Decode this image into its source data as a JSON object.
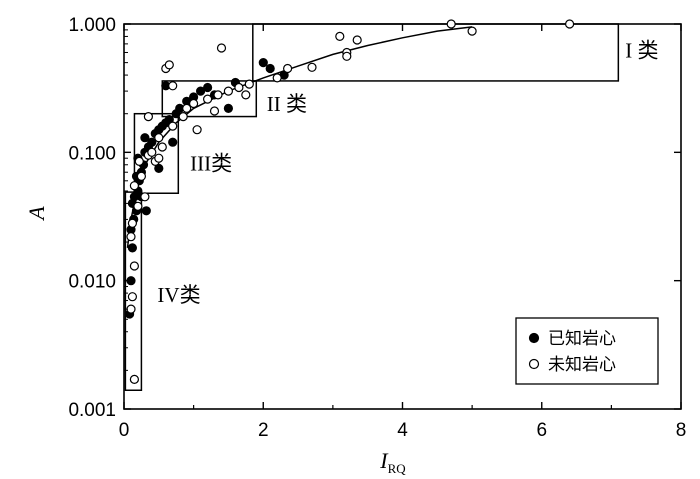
{
  "chart_data": {
    "type": "scatter",
    "title": "",
    "xlabel": "I",
    "xlabel_sub": "RQ",
    "ylabel": "A",
    "xlim": [
      0,
      8
    ],
    "ylim": [
      0.001,
      1.0
    ],
    "yscale": "log",
    "xticks": [
      "0",
      "2",
      "4",
      "6",
      "8"
    ],
    "yticks": [
      "0.001",
      "0.010",
      "0.100",
      "1.000"
    ],
    "grid": false,
    "legend_position": "bottom-right",
    "series": [
      {
        "name": "已知岩心",
        "marker": "filled-circle",
        "color": "#000000",
        "points": [
          [
            0.08,
            0.0055
          ],
          [
            0.1,
            0.01
          ],
          [
            0.12,
            0.018
          ],
          [
            0.1,
            0.025
          ],
          [
            0.14,
            0.03
          ],
          [
            0.12,
            0.04
          ],
          [
            0.18,
            0.035
          ],
          [
            0.15,
            0.045
          ],
          [
            0.2,
            0.05
          ],
          [
            0.22,
            0.06
          ],
          [
            0.18,
            0.065
          ],
          [
            0.25,
            0.07
          ],
          [
            0.28,
            0.08
          ],
          [
            0.2,
            0.09
          ],
          [
            0.3,
            0.1
          ],
          [
            0.35,
            0.11
          ],
          [
            0.4,
            0.12
          ],
          [
            0.3,
            0.13
          ],
          [
            0.45,
            0.14
          ],
          [
            0.5,
            0.15
          ],
          [
            0.55,
            0.16
          ],
          [
            0.6,
            0.17
          ],
          [
            0.65,
            0.18
          ],
          [
            0.75,
            0.2
          ],
          [
            0.8,
            0.22
          ],
          [
            0.9,
            0.25
          ],
          [
            1.0,
            0.27
          ],
          [
            1.1,
            0.3
          ],
          [
            1.2,
            0.32
          ],
          [
            1.3,
            0.28
          ],
          [
            1.5,
            0.22
          ],
          [
            1.6,
            0.35
          ],
          [
            2.0,
            0.5
          ],
          [
            2.1,
            0.45
          ],
          [
            2.3,
            0.4
          ],
          [
            0.6,
            0.33
          ],
          [
            0.25,
            0.045
          ],
          [
            0.32,
            0.035
          ],
          [
            0.5,
            0.075
          ],
          [
            0.7,
            0.12
          ]
        ]
      },
      {
        "name": "未知岩心",
        "marker": "open-circle",
        "color": "#000000",
        "points": [
          [
            0.15,
            0.0017
          ],
          [
            0.1,
            0.006
          ],
          [
            0.12,
            0.0075
          ],
          [
            0.15,
            0.013
          ],
          [
            0.1,
            0.022
          ],
          [
            0.12,
            0.028
          ],
          [
            0.2,
            0.038
          ],
          [
            0.15,
            0.055
          ],
          [
            0.25,
            0.065
          ],
          [
            0.22,
            0.085
          ],
          [
            0.35,
            0.095
          ],
          [
            0.45,
            0.085
          ],
          [
            0.55,
            0.11
          ],
          [
            0.5,
            0.13
          ],
          [
            0.7,
            0.16
          ],
          [
            0.85,
            0.19
          ],
          [
            0.9,
            0.22
          ],
          [
            1.0,
            0.24
          ],
          [
            1.2,
            0.26
          ],
          [
            1.35,
            0.28
          ],
          [
            1.5,
            0.3
          ],
          [
            1.65,
            0.32
          ],
          [
            1.8,
            0.34
          ],
          [
            2.2,
            0.38
          ],
          [
            2.35,
            0.45
          ],
          [
            2.7,
            0.46
          ],
          [
            3.1,
            0.8
          ],
          [
            3.2,
            0.6
          ],
          [
            3.35,
            0.75
          ],
          [
            3.2,
            0.56
          ],
          [
            4.7,
            1.0
          ],
          [
            5.0,
            0.88
          ],
          [
            6.4,
            1.0
          ],
          [
            0.6,
            0.45
          ],
          [
            0.65,
            0.48
          ],
          [
            1.4,
            0.65
          ],
          [
            0.7,
            0.33
          ],
          [
            0.35,
            0.19
          ],
          [
            1.05,
            0.15
          ],
          [
            1.3,
            0.21
          ],
          [
            0.4,
            0.1
          ],
          [
            0.5,
            0.09
          ],
          [
            0.3,
            0.045
          ],
          [
            1.75,
            0.28
          ]
        ]
      }
    ],
    "trend_curve": {
      "points": [
        [
          0.05,
          0.018
        ],
        [
          0.1,
          0.03
        ],
        [
          0.2,
          0.055
        ],
        [
          0.3,
          0.08
        ],
        [
          0.5,
          0.12
        ],
        [
          0.75,
          0.17
        ],
        [
          1.0,
          0.22
        ],
        [
          1.5,
          0.3
        ],
        [
          2.0,
          0.38
        ],
        [
          2.5,
          0.47
        ],
        [
          3.0,
          0.58
        ],
        [
          3.5,
          0.68
        ],
        [
          4.0,
          0.78
        ],
        [
          4.5,
          0.88
        ],
        [
          5.0,
          0.95
        ]
      ]
    },
    "class_boxes": [
      {
        "label": "I 类",
        "x_range": [
          1.85,
          7.1
        ],
        "y_range": [
          0.36,
          1.0
        ],
        "label_pos": [
          7.2,
          0.55
        ]
      },
      {
        "label": "II 类",
        "x_range": [
          0.55,
          1.9
        ],
        "y_range": [
          0.19,
          0.36
        ],
        "label_pos": [
          2.05,
          0.21
        ]
      },
      {
        "label": "III类",
        "x_range": [
          0.15,
          0.78
        ],
        "y_range": [
          0.048,
          0.2
        ],
        "label_pos": [
          0.95,
          0.072
        ]
      },
      {
        "label": "IV类",
        "x_range": [
          0.02,
          0.25
        ],
        "y_range": [
          0.0014,
          0.049
        ],
        "label_pos": [
          0.48,
          0.0068
        ]
      }
    ]
  }
}
